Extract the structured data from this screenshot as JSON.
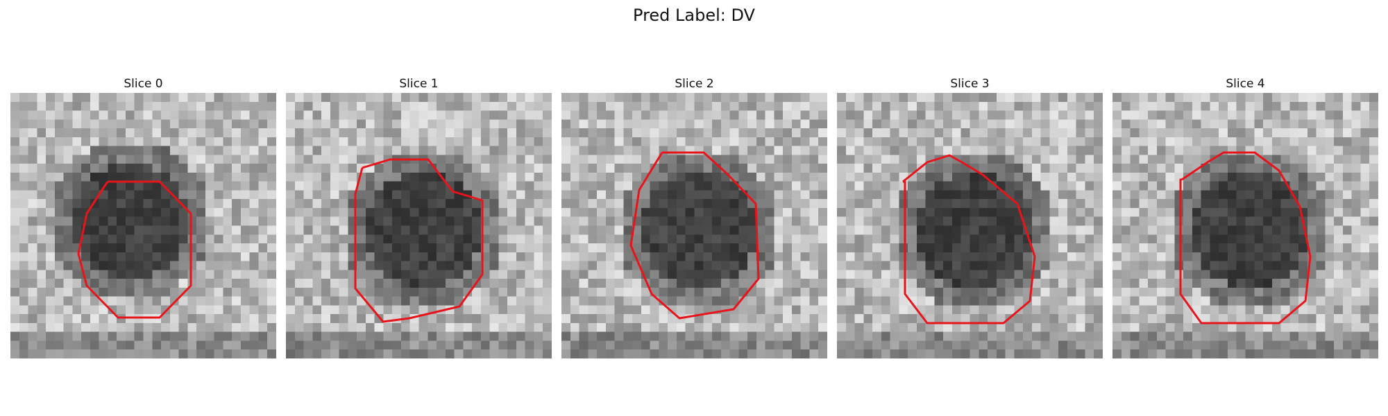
{
  "figure": {
    "title": "Pred Label: DV"
  },
  "contour_color": "#e8141b",
  "slices": [
    {
      "label": "Slice 0"
    },
    {
      "label": "Slice 1"
    },
    {
      "label": "Slice 2"
    },
    {
      "label": "Slice 3"
    },
    {
      "label": "Slice 4"
    }
  ]
}
